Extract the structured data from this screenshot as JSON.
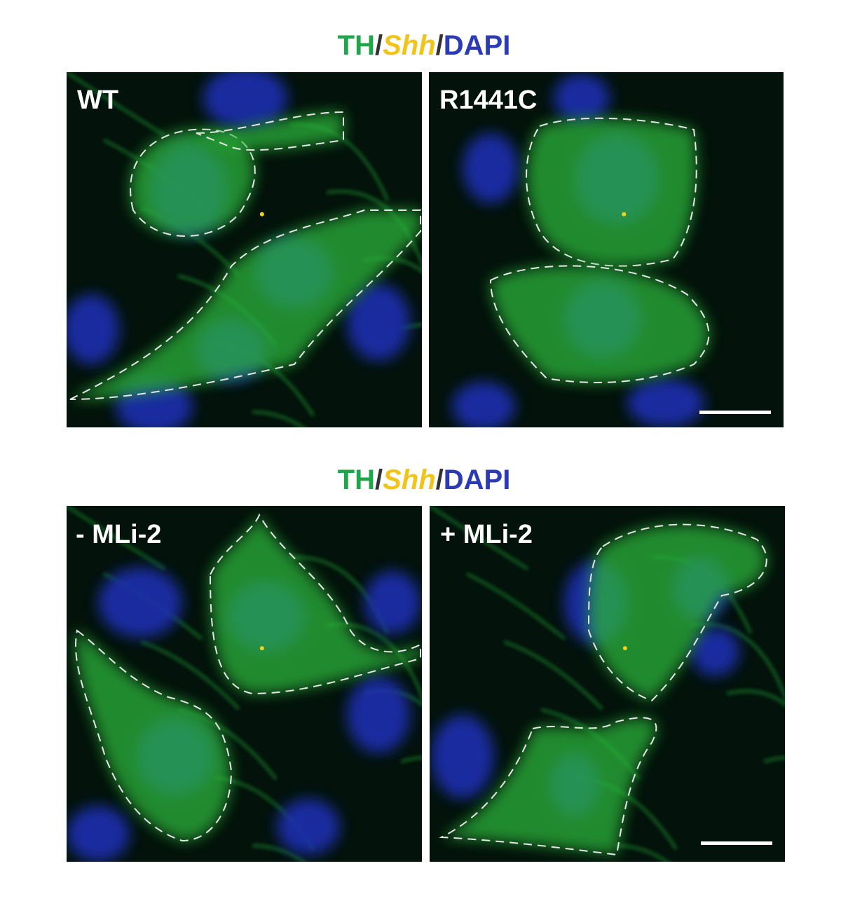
{
  "rows": [
    {
      "title": {
        "marker_1": "TH",
        "sep_1": "/",
        "marker_2": "Shh",
        "sep_2": "/",
        "marker_3": "DAPI"
      },
      "panels": [
        {
          "label": "WT"
        },
        {
          "label": "R1441C"
        }
      ]
    },
    {
      "title": {
        "marker_1": "TH",
        "sep_1": "/",
        "marker_2": "Shh",
        "sep_2": "/",
        "marker_3": "DAPI"
      },
      "panels": [
        {
          "label": "- MLi-2"
        },
        {
          "label": "+ MLi-2"
        }
      ]
    }
  ]
}
